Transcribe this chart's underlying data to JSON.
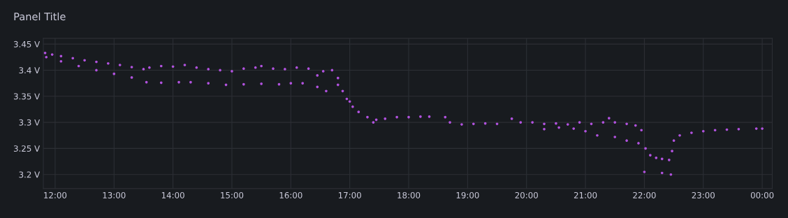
{
  "chart_data": {
    "type": "scatter",
    "title": "Panel Title",
    "series": [
      {
        "color": "#b152de",
        "x": [
          11.83,
          11.95,
          12.1,
          12.3,
          12.5,
          12.7,
          12.9,
          13.1,
          13.3,
          13.5,
          13.6,
          13.8,
          14.0,
          14.2,
          14.4,
          14.6,
          14.8,
          15.0,
          15.2,
          15.4,
          15.5,
          15.7,
          15.9,
          16.1,
          16.3,
          16.45,
          16.55,
          16.7,
          16.8,
          16.88,
          16.95,
          17.05,
          17.15,
          17.3,
          17.45,
          17.6,
          17.8,
          18.0,
          18.2,
          18.35,
          18.62,
          18.7,
          18.9,
          19.1,
          19.3,
          19.5,
          19.75,
          19.9,
          20.1,
          20.3,
          20.5,
          20.7,
          20.9,
          21.1,
          21.3,
          21.4,
          21.5,
          21.7,
          21.85,
          21.95,
          22.02,
          22.1,
          22.2,
          22.3,
          22.42,
          22.47,
          22.5,
          22.6,
          22.8,
          23.0,
          23.2,
          23.4,
          23.6,
          23.9,
          24.0,
          11.85,
          12.1,
          12.4,
          12.7,
          13.0,
          13.3,
          13.55,
          13.8,
          14.1,
          14.3,
          14.6,
          14.9,
          15.2,
          15.5,
          15.8,
          16.0,
          16.2,
          16.45,
          16.6,
          16.8,
          17.0,
          17.4,
          20.3,
          20.55,
          20.8,
          21.0,
          21.2,
          21.5,
          21.7,
          21.9,
          22.0,
          22.3,
          22.45
        ],
        "values": [
          3.433,
          3.43,
          3.427,
          3.423,
          3.419,
          3.416,
          3.413,
          3.41,
          3.406,
          3.402,
          3.405,
          3.408,
          3.407,
          3.41,
          3.405,
          3.402,
          3.4,
          3.398,
          3.403,
          3.405,
          3.408,
          3.403,
          3.402,
          3.405,
          3.403,
          3.39,
          3.398,
          3.4,
          3.385,
          3.36,
          3.345,
          3.33,
          3.32,
          3.31,
          3.305,
          3.307,
          3.31,
          3.31,
          3.311,
          3.311,
          3.31,
          3.3,
          3.296,
          3.297,
          3.298,
          3.297,
          3.307,
          3.3,
          3.3,
          3.297,
          3.298,
          3.296,
          3.3,
          3.297,
          3.3,
          3.308,
          3.3,
          3.297,
          3.294,
          3.285,
          3.25,
          3.237,
          3.232,
          3.23,
          3.228,
          3.245,
          3.265,
          3.275,
          3.28,
          3.283,
          3.285,
          3.286,
          3.287,
          3.288,
          3.288,
          3.425,
          3.417,
          3.408,
          3.4,
          3.393,
          3.386,
          3.377,
          3.376,
          3.377,
          3.377,
          3.375,
          3.372,
          3.373,
          3.374,
          3.373,
          3.375,
          3.375,
          3.368,
          3.36,
          3.372,
          3.34,
          3.3,
          3.287,
          3.29,
          3.288,
          3.283,
          3.275,
          3.272,
          3.265,
          3.26,
          3.205,
          3.203,
          3.2
        ]
      }
    ],
    "xlim": [
      11.8,
      24.17
    ],
    "ylim": [
      3.173,
      3.461
    ],
    "xticks": [
      {
        "value": 12,
        "label": "12:00"
      },
      {
        "value": 13,
        "label": "13:00"
      },
      {
        "value": 14,
        "label": "14:00"
      },
      {
        "value": 15,
        "label": "15:00"
      },
      {
        "value": 16,
        "label": "16:00"
      },
      {
        "value": 17,
        "label": "17:00"
      },
      {
        "value": 18,
        "label": "18:00"
      },
      {
        "value": 19,
        "label": "19:00"
      },
      {
        "value": 20,
        "label": "20:00"
      },
      {
        "value": 21,
        "label": "21:00"
      },
      {
        "value": 22,
        "label": "22:00"
      },
      {
        "value": 23,
        "label": "23:00"
      },
      {
        "value": 24,
        "label": "00:00"
      }
    ],
    "yticks": [
      {
        "value": 3.2,
        "label": "3.2 V"
      },
      {
        "value": 3.25,
        "label": "3.25 V"
      },
      {
        "value": 3.3,
        "label": "3.3 V"
      },
      {
        "value": 3.35,
        "label": "3.35 V"
      },
      {
        "value": 3.4,
        "label": "3.4 V"
      },
      {
        "value": 3.45,
        "label": "3.45 V"
      }
    ],
    "grid": true,
    "marker": "circle",
    "legend": false
  }
}
